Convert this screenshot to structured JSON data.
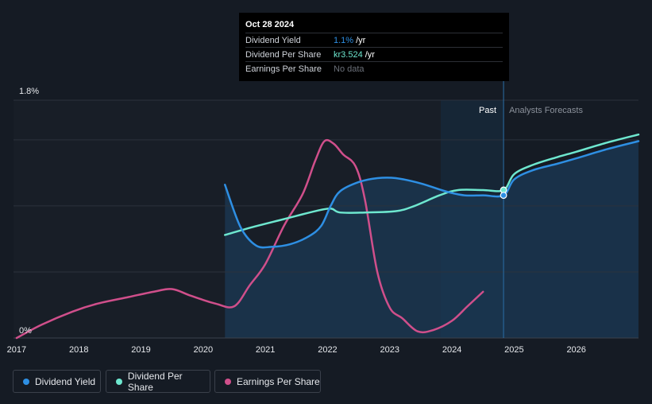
{
  "tooltip": {
    "date": "Oct 28 2024",
    "rows": [
      {
        "label": "Dividend Yield",
        "value": "1.1%",
        "unit": "/yr",
        "color": "#2e8fe3"
      },
      {
        "label": "Dividend Per Share",
        "value": "kr3.524",
        "unit": "/yr",
        "color": "#6ee7cf"
      },
      {
        "label": "Earnings Per Share",
        "value": "No data",
        "unit": "",
        "color": "#6b7079"
      }
    ]
  },
  "labels": {
    "past": "Past",
    "forecast": "Analysts Forecasts"
  },
  "legend": [
    {
      "name": "Dividend Yield",
      "color": "#2e8fe3"
    },
    {
      "name": "Dividend Per Share",
      "color": "#6ee7cf"
    },
    {
      "name": "Earnings Per Share",
      "color": "#d04f8b"
    }
  ],
  "chart_data": {
    "type": "line",
    "x_ticks": [
      "2017",
      "2018",
      "2019",
      "2020",
      "2021",
      "2022",
      "2023",
      "2024",
      "2025",
      "2026"
    ],
    "y_ticks": [
      "0%",
      "1.8%"
    ],
    "ylim": [
      0,
      1.8
    ],
    "xlim": [
      2016.95,
      2027.0
    ],
    "past_until": 2024.83,
    "series": [
      {
        "name": "Dividend Yield",
        "color": "#2e8fe3",
        "points": [
          [
            2020.35,
            1.16
          ],
          [
            2020.6,
            0.84
          ],
          [
            2020.85,
            0.7
          ],
          [
            2021.1,
            0.69
          ],
          [
            2021.4,
            0.71
          ],
          [
            2021.7,
            0.77
          ],
          [
            2021.9,
            0.85
          ],
          [
            2022.05,
            1.0
          ],
          [
            2022.2,
            1.11
          ],
          [
            2022.5,
            1.18
          ],
          [
            2022.8,
            1.21
          ],
          [
            2023.1,
            1.21
          ],
          [
            2023.5,
            1.17
          ],
          [
            2023.9,
            1.11
          ],
          [
            2024.2,
            1.08
          ],
          [
            2024.5,
            1.08
          ],
          [
            2024.83,
            1.08
          ],
          [
            2025.0,
            1.2
          ],
          [
            2025.3,
            1.27
          ],
          [
            2025.7,
            1.32
          ],
          [
            2026.0,
            1.36
          ],
          [
            2026.5,
            1.43
          ],
          [
            2027.0,
            1.49
          ]
        ]
      },
      {
        "name": "Dividend Per Share",
        "color": "#6ee7cf",
        "points": [
          [
            2020.35,
            0.78
          ],
          [
            2020.8,
            0.84
          ],
          [
            2021.3,
            0.9
          ],
          [
            2021.8,
            0.96
          ],
          [
            2022.05,
            0.98
          ],
          [
            2022.2,
            0.95
          ],
          [
            2022.6,
            0.95
          ],
          [
            2023.1,
            0.96
          ],
          [
            2023.4,
            1.0
          ],
          [
            2023.8,
            1.08
          ],
          [
            2024.1,
            1.12
          ],
          [
            2024.5,
            1.12
          ],
          [
            2024.83,
            1.12
          ],
          [
            2025.0,
            1.24
          ],
          [
            2025.3,
            1.31
          ],
          [
            2025.7,
            1.37
          ],
          [
            2026.0,
            1.41
          ],
          [
            2026.5,
            1.48
          ],
          [
            2027.0,
            1.54
          ]
        ]
      },
      {
        "name": "Earnings Per Share",
        "color": "#d04f8b",
        "points": [
          [
            2017.0,
            0.0
          ],
          [
            2017.4,
            0.1
          ],
          [
            2017.9,
            0.2
          ],
          [
            2018.3,
            0.26
          ],
          [
            2018.8,
            0.31
          ],
          [
            2019.2,
            0.35
          ],
          [
            2019.5,
            0.37
          ],
          [
            2019.8,
            0.32
          ],
          [
            2020.2,
            0.26
          ],
          [
            2020.5,
            0.24
          ],
          [
            2020.75,
            0.4
          ],
          [
            2021.0,
            0.56
          ],
          [
            2021.3,
            0.85
          ],
          [
            2021.6,
            1.09
          ],
          [
            2021.8,
            1.34
          ],
          [
            2021.95,
            1.49
          ],
          [
            2022.1,
            1.47
          ],
          [
            2022.25,
            1.39
          ],
          [
            2022.45,
            1.3
          ],
          [
            2022.6,
            1.05
          ],
          [
            2022.8,
            0.5
          ],
          [
            2023.0,
            0.23
          ],
          [
            2023.2,
            0.15
          ],
          [
            2023.45,
            0.05
          ],
          [
            2023.7,
            0.06
          ],
          [
            2024.0,
            0.13
          ],
          [
            2024.25,
            0.24
          ],
          [
            2024.5,
            0.35
          ]
        ]
      }
    ]
  }
}
